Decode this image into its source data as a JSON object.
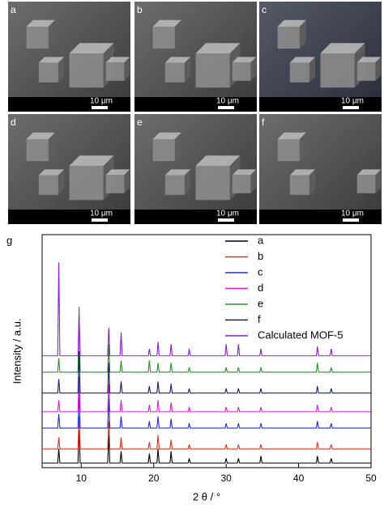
{
  "panels": [
    {
      "label": "a",
      "scale": "10 μm"
    },
    {
      "label": "b",
      "scale": "10 μm"
    },
    {
      "label": "c",
      "scale": "10 μm"
    },
    {
      "label": "d",
      "scale": "10 μm"
    },
    {
      "label": "e",
      "scale": "10 μm"
    },
    {
      "label": "f",
      "scale": "10 μm"
    }
  ],
  "chart_label": "g",
  "chart_data": {
    "type": "line",
    "x_label": "2 θ / °",
    "y_label": "Intensity / a.u.",
    "xlim": [
      4.6,
      50
    ],
    "xticks": [
      10,
      20,
      30,
      40,
      50
    ],
    "ylim": [
      0,
      100
    ],
    "x": [
      4.6,
      6.75,
      6.9,
      7.05,
      9.55,
      9.7,
      9.85,
      13.65,
      13.8,
      13.95,
      15.35,
      15.5,
      15.65,
      19.25,
      19.4,
      19.55,
      20.45,
      20.6,
      20.75,
      22.25,
      22.4,
      22.55,
      24.75,
      24.9,
      25.05,
      29.85,
      30.0,
      30.15,
      31.55,
      31.7,
      31.85,
      34.65,
      34.8,
      34.95,
      42.45,
      42.6,
      42.75,
      44.35,
      44.5,
      44.65,
      50
    ],
    "series": [
      {
        "name": "a",
        "color": "#000000",
        "values": [
          2,
          2,
          8,
          2,
          2,
          18,
          2,
          2,
          14,
          2,
          2,
          7,
          2,
          2,
          6,
          2,
          2,
          8,
          2,
          2,
          7,
          2,
          2,
          4,
          2,
          2,
          4,
          2,
          2,
          4,
          2,
          2,
          5,
          2,
          2,
          5,
          2,
          2,
          4,
          2,
          2
        ]
      },
      {
        "name": "b",
        "color": "#e0301e",
        "values": [
          8,
          8,
          13,
          8,
          8,
          22,
          8,
          8,
          20,
          8,
          8,
          13,
          8,
          8,
          11,
          8,
          8,
          14,
          8,
          8,
          12,
          8,
          8,
          10,
          8,
          8,
          10,
          8,
          8,
          10,
          8,
          8,
          10,
          8,
          8,
          11,
          8,
          8,
          10,
          8,
          8
        ]
      },
      {
        "name": "c",
        "color": "#1f2fd6",
        "values": [
          17,
          17,
          23,
          17,
          17,
          33,
          17,
          17,
          30,
          17,
          17,
          22,
          17,
          17,
          20,
          17,
          17,
          22,
          17,
          17,
          21,
          17,
          17,
          19,
          17,
          17,
          19,
          17,
          17,
          19,
          17,
          17,
          19,
          17,
          17,
          20,
          17,
          17,
          19,
          17,
          17
        ]
      },
      {
        "name": "d",
        "color": "#d81fd6",
        "values": [
          24,
          24,
          29,
          24,
          24,
          39,
          24,
          24,
          36,
          24,
          24,
          29,
          24,
          24,
          27,
          24,
          24,
          29,
          24,
          24,
          28,
          24,
          24,
          26,
          24,
          24,
          26,
          24,
          24,
          26,
          24,
          24,
          26,
          24,
          24,
          27,
          24,
          24,
          26,
          24,
          24
        ]
      },
      {
        "name": "e",
        "color": "#2a8f2a",
        "values": [
          41,
          41,
          47,
          41,
          41,
          69,
          41,
          41,
          53,
          41,
          41,
          46,
          41,
          41,
          46,
          41,
          41,
          45,
          41,
          41,
          45,
          41,
          41,
          43,
          41,
          41,
          43,
          41,
          41,
          43,
          41,
          41,
          43,
          41,
          41,
          45,
          41,
          41,
          43,
          41,
          41
        ]
      },
      {
        "name": "f",
        "color": "#1a1f6e",
        "values": [
          32,
          32,
          38,
          32,
          32,
          50,
          32,
          32,
          45,
          32,
          32,
          37,
          32,
          32,
          35,
          32,
          32,
          37,
          32,
          32,
          36,
          32,
          32,
          34,
          32,
          32,
          34,
          32,
          32,
          34,
          32,
          32,
          34,
          32,
          32,
          35,
          32,
          32,
          34,
          32,
          32
        ]
      },
      {
        "name": "Calculated MOF-5",
        "color": "#8a1fd6",
        "values": [
          48,
          48,
          88,
          48,
          48,
          66,
          48,
          48,
          60,
          48,
          48,
          58,
          48,
          48,
          51,
          48,
          48,
          54,
          48,
          48,
          53,
          48,
          48,
          51,
          48,
          48,
          53,
          48,
          48,
          53,
          48,
          48,
          51,
          48,
          48,
          52,
          48,
          48,
          51,
          48,
          48
        ]
      }
    ]
  }
}
